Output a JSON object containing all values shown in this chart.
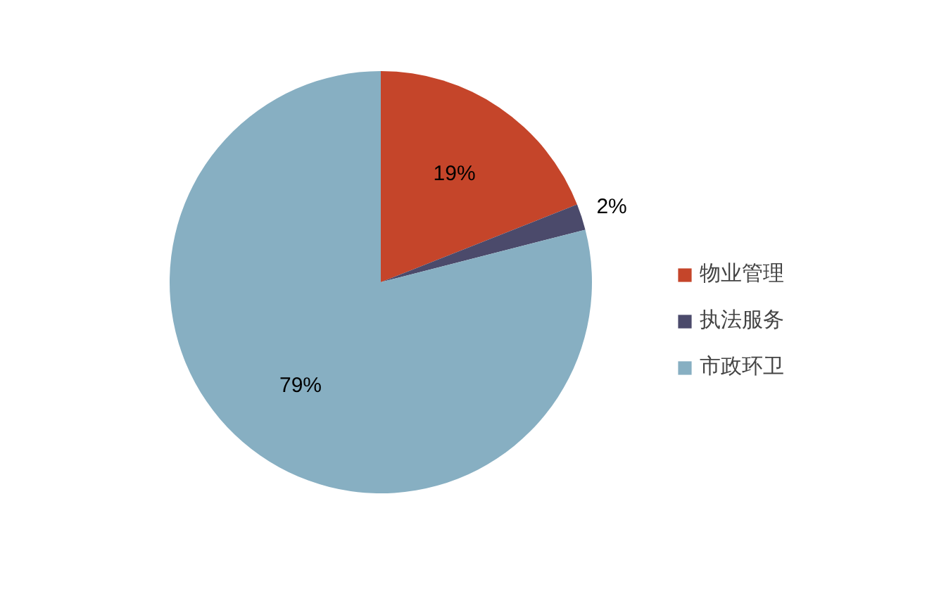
{
  "chart_data": {
    "type": "pie",
    "categories": [
      "物业管理",
      "执法服务",
      "市政环卫"
    ],
    "values": [
      19,
      2,
      79
    ],
    "colors": [
      "#c5452a",
      "#4b4a6b",
      "#87afc2"
    ],
    "value_labels": [
      "19%",
      "2%",
      "79%"
    ],
    "legend": "right"
  }
}
